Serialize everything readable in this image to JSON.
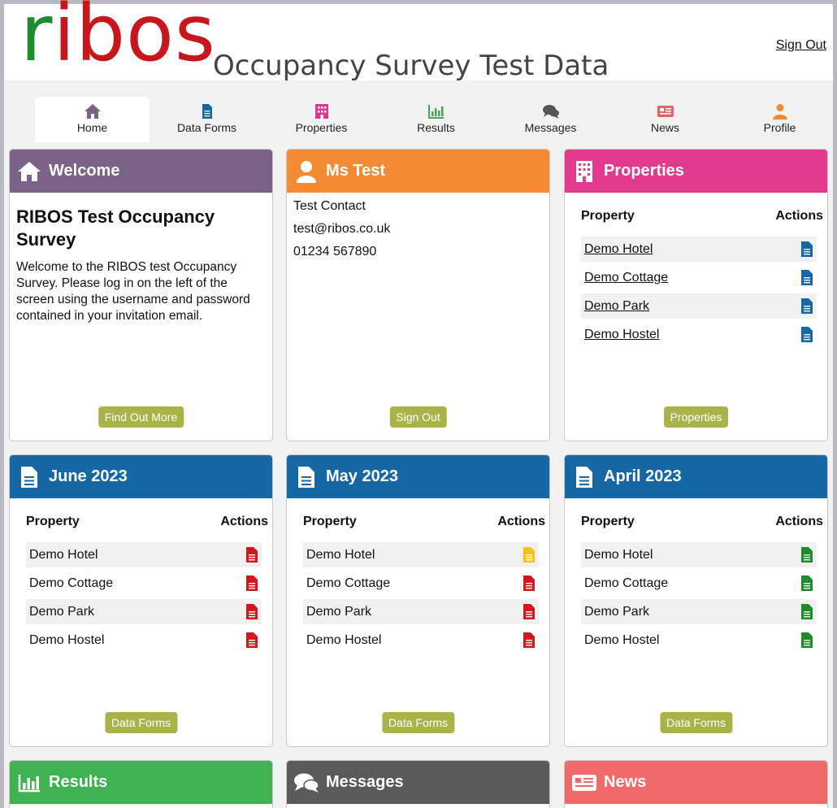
{
  "header": {
    "logo_text": "ribos",
    "subtitle": "Occupancy Survey Test Data",
    "sign_out": "Sign Out"
  },
  "nav": {
    "tabs": [
      {
        "label": "Home",
        "icon": "home-icon",
        "color": "#7b6287"
      },
      {
        "label": "Data Forms",
        "icon": "document-icon",
        "color": "#1668a5"
      },
      {
        "label": "Properties",
        "icon": "building-icon",
        "color": "#e0368f"
      },
      {
        "label": "Results",
        "icon": "bar-chart-icon",
        "color": "#3fa852"
      },
      {
        "label": "Messages",
        "icon": "chat-icon",
        "color": "#555555"
      },
      {
        "label": "News",
        "icon": "newspaper-icon",
        "color": "#e86464"
      },
      {
        "label": "Profile",
        "icon": "user-icon",
        "color": "#f08c32"
      }
    ]
  },
  "cards": {
    "welcome": {
      "title": "Welcome",
      "color": "#7b6287",
      "heading": "RIBOS Test Occupancy Survey",
      "text": "Welcome to the RIBOS test Occupancy Survey. Please log in on the left of the screen using the username and password contained in your invitation email.",
      "button": "Find Out More"
    },
    "contact": {
      "title": "Ms Test",
      "color": "#f38b35",
      "lines": [
        "Test Contact",
        "test@ribos.co.uk",
        "01234 567890"
      ],
      "button": "Sign Out"
    },
    "properties": {
      "title": "Properties",
      "color": "#e23a8d",
      "col_property": "Property",
      "col_actions": "Actions",
      "rows": [
        "Demo Hotel",
        "Demo Cottage",
        "Demo Park",
        "Demo Hostel"
      ],
      "doc_color": "#1668a5",
      "button": "Properties"
    },
    "months": [
      {
        "title": "June 2023",
        "color": "#1668a5",
        "col_property": "Property",
        "col_actions": "Actions",
        "rows": [
          {
            "name": "Demo Hotel",
            "doc_color": "#d0181e"
          },
          {
            "name": "Demo Cottage",
            "doc_color": "#d0181e"
          },
          {
            "name": "Demo Park",
            "doc_color": "#d0181e"
          },
          {
            "name": "Demo Hostel",
            "doc_color": "#d0181e"
          }
        ],
        "button": "Data Forms"
      },
      {
        "title": "May 2023",
        "color": "#1668a5",
        "col_property": "Property",
        "col_actions": "Actions",
        "rows": [
          {
            "name": "Demo Hotel",
            "doc_color": "#f5c318"
          },
          {
            "name": "Demo Cottage",
            "doc_color": "#d0181e"
          },
          {
            "name": "Demo Park",
            "doc_color": "#d0181e"
          },
          {
            "name": "Demo Hostel",
            "doc_color": "#d0181e"
          }
        ],
        "button": "Data Forms"
      },
      {
        "title": "April 2023",
        "color": "#1668a5",
        "col_property": "Property",
        "col_actions": "Actions",
        "rows": [
          {
            "name": "Demo Hotel",
            "doc_color": "#1e8c2c"
          },
          {
            "name": "Demo Cottage",
            "doc_color": "#1e8c2c"
          },
          {
            "name": "Demo Park",
            "doc_color": "#1e8c2c"
          },
          {
            "name": "Demo Hostel",
            "doc_color": "#1e8c2c"
          }
        ],
        "button": "Data Forms"
      }
    ],
    "results": {
      "title": "Results",
      "color": "#3fb352"
    },
    "messages": {
      "title": "Messages",
      "color": "#5a5a5a"
    },
    "news": {
      "title": "News",
      "color": "#f06a6a"
    }
  }
}
